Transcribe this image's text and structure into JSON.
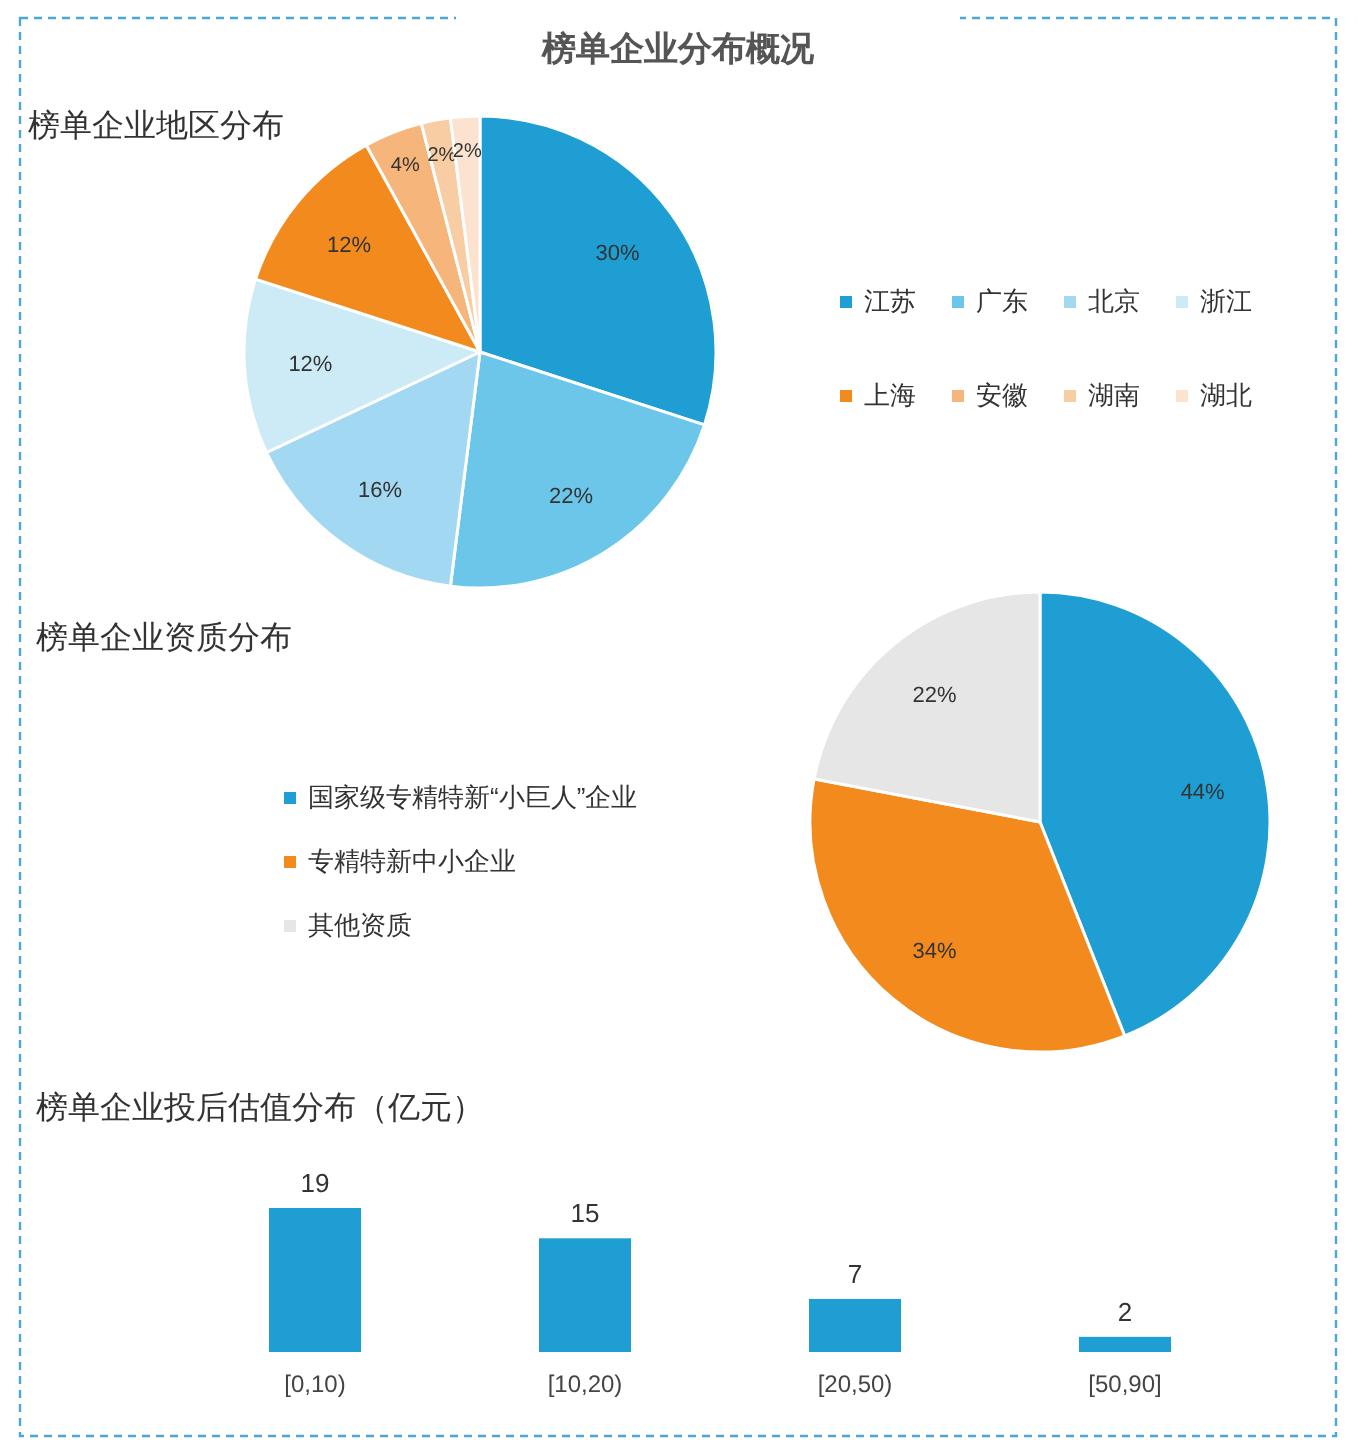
{
  "chart_data": [
    {
      "type": "pie",
      "title": "榜单企业分布概况",
      "subtitle": "榜单企业地区分布",
      "categories": [
        "江苏",
        "广东",
        "北京",
        "浙江",
        "上海",
        "安徽",
        "湖南",
        "湖北"
      ],
      "values": [
        30,
        22,
        16,
        12,
        12,
        4,
        2,
        2
      ],
      "colors": [
        "#1f9ed3",
        "#6cc6ea",
        "#a2d8f1",
        "#cdebf7",
        "#f28a1e",
        "#f6b57a",
        "#f8cda4",
        "#fbe3cf"
      ],
      "value_labels": [
        "30%",
        "22%",
        "16%",
        "12%",
        "12%",
        "4%",
        "2%",
        "2%"
      ],
      "legend": "right"
    },
    {
      "type": "pie",
      "subtitle": "榜单企业资质分布",
      "categories": [
        "国家级专精特新“小巨人”企业",
        "专精特新中小企业",
        "其他资质"
      ],
      "values": [
        44,
        34,
        22
      ],
      "colors": [
        "#1f9ed3",
        "#f28a1e",
        "#e6e6e6"
      ],
      "value_labels": [
        "44%",
        "34%",
        "22%"
      ],
      "legend": "left"
    },
    {
      "type": "bar",
      "subtitle": "榜单企业投后估值分布（亿元）",
      "categories": [
        "[0,10)",
        "[10,20)",
        "[20,50)",
        "[50,90]"
      ],
      "values": [
        19,
        15,
        7,
        2
      ],
      "color": "#1f9ed3",
      "data_labels": true
    }
  ]
}
